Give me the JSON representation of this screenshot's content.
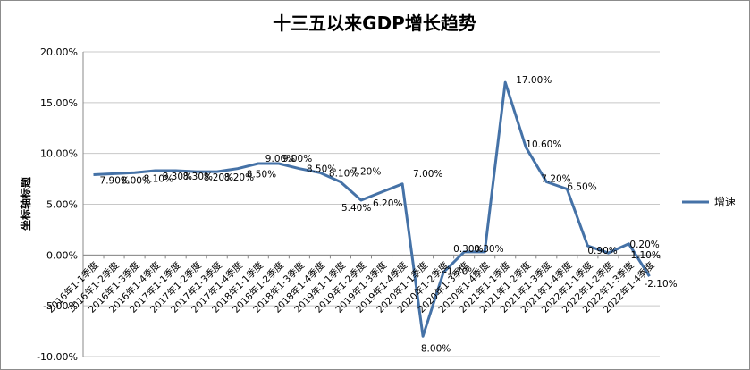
{
  "chart_data": {
    "type": "line",
    "title": "十三五以来GDP增长趋势",
    "ylabel": "坐标轴标题",
    "ylim": [
      -10,
      20
    ],
    "ytick_labels": [
      "20.00%",
      "15.00%",
      "10.00%",
      "5.00%",
      "0.00%",
      "-5.00%",
      "-10.00%"
    ],
    "grid": "horizontal",
    "legend_position": "right",
    "categories": [
      "2016年1-1季度",
      "2016年1-2季度",
      "2016年1-3季度",
      "2016年1-4季度",
      "2017年1-1季度",
      "2017年1-2季度",
      "2017年1-3季度",
      "2017年1-4季度",
      "2018年1-1季度",
      "2018年1-2季度",
      "2018年1-3季度",
      "2018年1-4季度",
      "2019年1-1季度",
      "2019年1-2季度",
      "2019年1-3季度",
      "2019年1-4季度",
      "2020年1-1季度",
      "2020年1-2季度",
      "2020年1-3季度",
      "2020年1-4季度",
      "2021年1-1季度",
      "2021年1-2季度",
      "2021年1-3季度",
      "2021年1-4季度",
      "2022年1-1季度",
      "2022年1-2季度",
      "2022年1-3季度",
      "2022年1-4季度"
    ],
    "series": [
      {
        "name": "增速",
        "color": "#4572a7",
        "values": [
          7.9,
          8.0,
          8.1,
          8.3,
          8.3,
          8.2,
          8.2,
          8.5,
          9.0,
          9.0,
          8.5,
          8.1,
          7.2,
          5.4,
          6.2,
          7.0,
          -8.0,
          -1.7,
          0.3,
          0.3,
          17.0,
          10.6,
          7.2,
          6.5,
          0.9,
          0.2,
          1.1,
          -2.1
        ],
        "labels": [
          "7.90%",
          "8.00%",
          "8.10%",
          "8.30%",
          "8.30%",
          "8.20%",
          "8.20%",
          "8.50%",
          "9.00%",
          "9.00%",
          "8.50%",
          "8.10%",
          "7.20%",
          "5.40%",
          "6.20%",
          "7.00%",
          "-8.00%",
          "-1.70%",
          "0.30%",
          "0.30%",
          "17.00%",
          "10.60%",
          "7.20%",
          "6.50%",
          "0.90%",
          "0.20%",
          "1.10%",
          "-2.10%"
        ]
      }
    ]
  }
}
